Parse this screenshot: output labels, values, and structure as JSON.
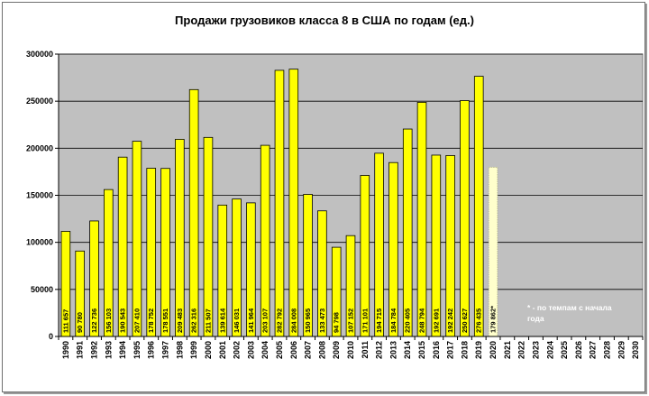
{
  "chart_data": {
    "type": "bar",
    "title": "Продажи грузовиков класса 8 в США по годам (ед.)",
    "xlabel": "",
    "ylabel": "",
    "ylim": [
      0,
      300000
    ],
    "yticks": [
      "0",
      "50000",
      "100000",
      "150000",
      "200000",
      "250000",
      "300000"
    ],
    "grid": true,
    "categories": [
      "1990",
      "1991",
      "1992",
      "1993",
      "1994",
      "1995",
      "1996",
      "1997",
      "1998",
      "1999",
      "2000",
      "2001",
      "2002",
      "2003",
      "2004",
      "2005",
      "2006",
      "2007",
      "2008",
      "2009",
      "2010",
      "2011",
      "2012",
      "2013",
      "2014",
      "2015",
      "2016",
      "2017",
      "2018",
      "2019",
      "2020",
      "2021",
      "2022",
      "2023",
      "2024",
      "2025",
      "2026",
      "2027",
      "2028",
      "2029",
      "2030"
    ],
    "values": [
      111657,
      90780,
      122736,
      156103,
      190543,
      207410,
      178752,
      178551,
      209483,
      262316,
      211507,
      139614,
      146031,
      141964,
      203107,
      282792,
      284008,
      150965,
      133473,
      94798,
      107152,
      171101,
      194715,
      184784,
      220405,
      248794,
      192691,
      192242,
      250627,
      276435,
      179862,
      null,
      null,
      null,
      null,
      null,
      null,
      null,
      null,
      null,
      null
    ],
    "labels": [
      "111 657",
      "90 780",
      "122 736",
      "156 103",
      "190 543",
      "207 410",
      "178 752",
      "178 551",
      "209 483",
      "262 316",
      "211 507",
      "139 614",
      "146 031",
      "141 964",
      "203 107",
      "282 792",
      "284 008",
      "150 965",
      "133 473",
      "94 798",
      "107 152",
      "171 101",
      "194 715",
      "184 784",
      "220 405",
      "248 794",
      "192 691",
      "192 242",
      "250 627",
      "276 435",
      "179 862*",
      "",
      "",
      "",
      "",
      "",
      "",
      "",
      "",
      "",
      ""
    ],
    "estimated": [
      false,
      false,
      false,
      false,
      false,
      false,
      false,
      false,
      false,
      false,
      false,
      false,
      false,
      false,
      false,
      false,
      false,
      false,
      false,
      false,
      false,
      false,
      false,
      false,
      false,
      false,
      false,
      false,
      false,
      false,
      true,
      false,
      false,
      false,
      false,
      false,
      false,
      false,
      false,
      false,
      false
    ],
    "annotation": "* - по темпам с начала года",
    "colors": {
      "plot_bg": "#c0c0c0",
      "bar": "#ffff00",
      "bar_estimate": "#ffffcc",
      "bar_border": "#000000",
      "grid": "#000000"
    }
  }
}
